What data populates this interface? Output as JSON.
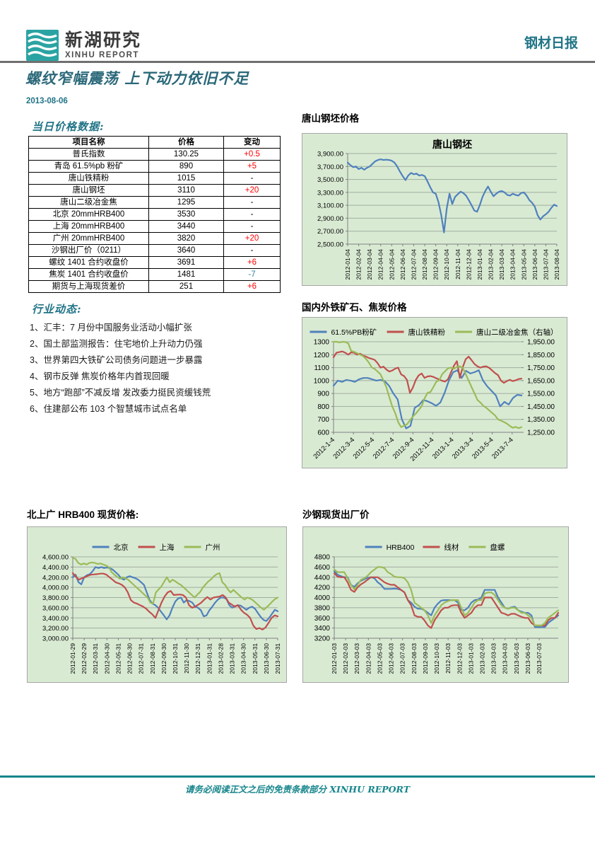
{
  "header": {
    "logo_title": "新湖研究",
    "logo_subtitle": "XINHU REPORT",
    "report_type": "钢材日报"
  },
  "report": {
    "title": "螺纹窄幅震荡 上下动力依旧不足",
    "date": "2013-08-06"
  },
  "colors": {
    "accent_teal": "#1f7486",
    "footer_teal": "#17868c",
    "up_red": "#ff0000",
    "down_teal": "#31859c",
    "chart_bg_green": "#d9ead3",
    "series_blue": "#4F81BD",
    "series_red": "#C0504D",
    "series_olive": "#9BBB59"
  },
  "price_table": {
    "heading": "当日价格数据:",
    "columns": [
      "项目名称",
      "价格",
      "变动"
    ],
    "rows": [
      {
        "name": "普氏指数",
        "price": "130.25",
        "change": "+0.5",
        "direction": "up"
      },
      {
        "name": "青岛 61.5%pb 粉矿",
        "price": "890",
        "change": "+5",
        "direction": "up"
      },
      {
        "name": "唐山铁精粉",
        "price": "1015",
        "change": "-",
        "direction": "flat"
      },
      {
        "name": "唐山钢坯",
        "price": "3110",
        "change": "+20",
        "direction": "up"
      },
      {
        "name": "唐山二级冶金焦",
        "price": "1295",
        "change": "-",
        "direction": "flat"
      },
      {
        "name": "北京 20mmHRB400",
        "price": "3530",
        "change": "-",
        "direction": "flat"
      },
      {
        "name": "上海 20mmHRB400",
        "price": "3440",
        "change": "-",
        "direction": "flat"
      },
      {
        "name": "广州 20mmHRB400",
        "price": "3820",
        "change": "+20",
        "direction": "up"
      },
      {
        "name": "沙钢出厂价（0211）",
        "price": "3640",
        "change": "-",
        "direction": "flat"
      },
      {
        "name": "螺纹 1401 合约收盘价",
        "price": "3691",
        "change": "+6",
        "direction": "up"
      },
      {
        "name": "焦炭 1401 合约收盘价",
        "price": "1481",
        "change": "-7",
        "direction": "down"
      },
      {
        "name": "期货与上海现货差价",
        "price": "251",
        "change": "+6",
        "direction": "up"
      }
    ]
  },
  "news": {
    "heading": "行业动态:",
    "items": [
      "1、汇丰：7 月份中国服务业活动小幅扩张",
      "2、国土部监测报告：住宅地价上升动力仍强",
      "3、世界第四大铁矿公司债务问题进一步暴露",
      "4、钢市反弹 焦炭价格年内首现回暖",
      "5、地方“跑部”不减反增 发改委力挺民资缓钱荒",
      "6、住建部公布 103 个智慧城市试点名单"
    ]
  },
  "footer": {
    "disclaimer": "请务必阅读正文之后的免责条款部分 XINHU REPORT"
  },
  "chart_data": [
    {
      "id": "c1",
      "type": "line",
      "heading": "唐山钢坯价格",
      "title": "唐山钢坯",
      "legend_position": "none",
      "grid": true,
      "left_axis": {
        "min": 2500,
        "max": 3900,
        "step": 200,
        "format": "comma2"
      },
      "x_ticks": [
        "2012-01-04",
        "2012-02-04",
        "2012-03-04",
        "2012-04-04",
        "2012-05-04",
        "2012-06-04",
        "2012-07-04",
        "2012-08-04",
        "2012-09-04",
        "2012-10-04",
        "2012-11-04",
        "2012-12-04",
        "2013-01-04",
        "2013-02-04",
        "2013-03-04",
        "2013-04-04",
        "2013-05-04",
        "2013-06-04",
        "2013-07-04",
        "2013-08-04"
      ],
      "series": [
        {
          "name": "唐山钢坯",
          "color": "#4F81BD",
          "values": [
            3760,
            3720,
            3690,
            3700,
            3660,
            3680,
            3650,
            3680,
            3700,
            3740,
            3780,
            3800,
            3810,
            3800,
            3805,
            3800,
            3790,
            3760,
            3700,
            3620,
            3550,
            3490,
            3560,
            3600,
            3580,
            3590,
            3560,
            3570,
            3550,
            3470,
            3380,
            3300,
            3280,
            3150,
            2950,
            2680,
            3050,
            3280,
            3120,
            3230,
            3270,
            3310,
            3290,
            3250,
            3180,
            3100,
            3020,
            3000,
            3100,
            3230,
            3320,
            3390,
            3310,
            3240,
            3280,
            3310,
            3320,
            3300,
            3260,
            3250,
            3280,
            3260,
            3250,
            3290,
            3300,
            3250,
            3180,
            3140,
            3080,
            2950,
            2880,
            2930,
            2960,
            3000,
            3060,
            3110,
            3090
          ]
        }
      ]
    },
    {
      "id": "c2",
      "type": "line",
      "heading": "国内外铁矿石、焦炭价格",
      "legend_position": "top",
      "grid": true,
      "left_axis": {
        "min": 600,
        "max": 1300,
        "step": 100,
        "format": "int"
      },
      "right_axis": {
        "min": 1250,
        "max": 1950,
        "step": 100,
        "format": "comma2"
      },
      "x_ticks": [
        "2012-1-4",
        "2012-3-4",
        "2012-5-4",
        "2012-7-4",
        "2012-9-4",
        "2012-11-4",
        "2013-1-4",
        "2013-3-4",
        "2013-5-4",
        "2013-7-4"
      ],
      "series": [
        {
          "name": "61.5%PB粉矿",
          "color": "#4F81BD",
          "axis": "left",
          "values": [
            960,
            1000,
            990,
            1005,
            1000,
            990,
            1010,
            1020,
            1020,
            1010,
            1000,
            1005,
            995,
            960,
            900,
            855,
            700,
            630,
            650,
            790,
            810,
            850,
            840,
            825,
            805,
            830,
            905,
            1000,
            1065,
            1080,
            1020,
            1075,
            1055,
            1065,
            1080,
            1000,
            955,
            920,
            885,
            800,
            835,
            815,
            865,
            890,
            885
          ]
        },
        {
          "name": "唐山铁精粉",
          "color": "#C0504D",
          "axis": "left",
          "values": [
            1180,
            1215,
            1220,
            1225,
            1215,
            1200,
            1218,
            1215,
            1200,
            1208,
            1195,
            1185,
            1175,
            1168,
            1160,
            1135,
            1100,
            1108,
            1085,
            1070,
            1078,
            1092,
            1100,
            1048,
            1035,
            1005,
            905,
            945,
            1005,
            1040,
            1055,
            1020,
            1032,
            1035,
            1028,
            1018,
            1008,
            998,
            992,
            1012,
            1065,
            1115,
            1150,
            1020,
            1105,
            1165,
            1185,
            1158,
            1128,
            1110,
            1100,
            1108,
            1110,
            1098,
            1078,
            1058,
            1042,
            1000,
            982,
            996,
            1006,
            996,
            1002,
            1012,
            1015
          ]
        },
        {
          "name": "唐山二级冶金焦（右轴）",
          "color": "#9BBB59",
          "axis": "right",
          "values": [
            1950,
            1950,
            1945,
            1950,
            1948,
            1938,
            1880,
            1872,
            1862,
            1850,
            1840,
            1818,
            1790,
            1752,
            1740,
            1720,
            1698,
            1650,
            1598,
            1520,
            1450,
            1398,
            1330,
            1290,
            1302,
            1312,
            1342,
            1372,
            1395,
            1422,
            1452,
            1512,
            1555,
            1562,
            1600,
            1642,
            1652,
            1700,
            1722,
            1745,
            1750,
            1742,
            1755,
            1760,
            1748,
            1700,
            1650,
            1600,
            1550,
            1500,
            1480,
            1455,
            1440,
            1420,
            1400,
            1380,
            1350,
            1340,
            1330,
            1318,
            1300,
            1285,
            1292,
            1282,
            1290
          ]
        }
      ]
    },
    {
      "id": "c3",
      "type": "line",
      "heading": "北上广 HRB400 现货价格:",
      "legend_position": "top",
      "grid": true,
      "left_axis": {
        "min": 3000,
        "max": 4600,
        "step": 200,
        "format": "comma2"
      },
      "x_ticks": [
        "2012-01-29",
        "2012-02-29",
        "2012-03-31",
        "2012-04-30",
        "2012-05-31",
        "2012-06-30",
        "2012-07-31",
        "2012-08-31",
        "2012-09-30",
        "2012-10-31",
        "2012-11-30",
        "2012-12-31",
        "2013-01-31",
        "2013-02-28",
        "2013-03-31",
        "2013-04-30",
        "2013-05-31",
        "2013-06-30",
        "2013-07-31"
      ],
      "series": [
        {
          "name": "北京",
          "color": "#4F81BD",
          "values": [
            4200,
            4250,
            4100,
            4060,
            4200,
            4240,
            4260,
            4320,
            4400,
            4380,
            4400,
            4380,
            4390,
            4380,
            4350,
            4300,
            4250,
            4180,
            4150,
            4200,
            4220,
            4200,
            4180,
            4150,
            4100,
            4050,
            3900,
            3750,
            3680,
            3650,
            3600,
            3520,
            3450,
            3370,
            3450,
            3600,
            3720,
            3780,
            3800,
            3700,
            3750,
            3730,
            3700,
            3620,
            3600,
            3550,
            3430,
            3450,
            3550,
            3620,
            3700,
            3760,
            3800,
            3800,
            3770,
            3650,
            3600,
            3630,
            3650,
            3640,
            3600,
            3560,
            3600,
            3620,
            3580,
            3500,
            3420,
            3360,
            3340,
            3400,
            3480,
            3560,
            3530
          ]
        },
        {
          "name": "上海",
          "color": "#C0504D",
          "values": [
            4280,
            4210,
            4150,
            4180,
            4200,
            4230,
            4250,
            4255,
            4260,
            4270,
            4270,
            4250,
            4200,
            4150,
            4100,
            4080,
            4050,
            4000,
            3900,
            3750,
            3700,
            3680,
            3650,
            3620,
            3580,
            3520,
            3470,
            3400,
            3550,
            3700,
            3820,
            3900,
            3930,
            3850,
            3855,
            3860,
            3850,
            3800,
            3650,
            3600,
            3620,
            3660,
            3700,
            3760,
            3810,
            3760,
            3800,
            3810,
            3820,
            3850,
            3800,
            3700,
            3660,
            3620,
            3650,
            3560,
            3500,
            3460,
            3400,
            3250,
            3180,
            3200,
            3170,
            3210,
            3300,
            3400,
            3450,
            3430
          ]
        },
        {
          "name": "广州",
          "color": "#9BBB59",
          "values": [
            4580,
            4560,
            4480,
            4450,
            4470,
            4450,
            4480,
            4490,
            4480,
            4460,
            4470,
            4450,
            4430,
            4400,
            4300,
            4250,
            4210,
            4170,
            4200,
            4180,
            4150,
            4100,
            4050,
            4000,
            3950,
            3900,
            3850,
            3800,
            3700,
            3680,
            3900,
            3960,
            4020,
            4110,
            4200,
            4100,
            4150,
            4120,
            4080,
            4050,
            4000,
            3950,
            3900,
            3850,
            3800,
            3860,
            3910,
            4000,
            4060,
            4120,
            4160,
            4220,
            4260,
            4280,
            4100,
            4050,
            3960,
            3900,
            3950,
            3900,
            3850,
            3800,
            3760,
            3800,
            3780,
            3750,
            3700,
            3650,
            3600,
            3560,
            3610,
            3660,
            3720,
            3770,
            3800
          ]
        }
      ]
    },
    {
      "id": "c4",
      "type": "line",
      "heading": "沙钢现货出厂价",
      "legend_position": "top",
      "grid": true,
      "left_axis": {
        "min": 3200,
        "max": 4800,
        "step": 200,
        "format": "int"
      },
      "x_ticks": [
        "2012-01-03",
        "2012-02-03",
        "2012-03-03",
        "2012-04-03",
        "2012-05-03",
        "2012-06-03",
        "2012-07-03",
        "2012-08-03",
        "2012-09-03",
        "2012-10-03",
        "2012-11-03",
        "2012-12-03",
        "2013-01-03",
        "2013-02-03",
        "2013-03-03",
        "2013-04-03",
        "2013-05-03",
        "2013-06-03",
        "2013-07-03"
      ],
      "series": [
        {
          "name": "HRB400",
          "color": "#4F81BD",
          "values": [
            4520,
            4450,
            4420,
            4400,
            4400,
            4250,
            4210,
            4280,
            4330,
            4360,
            4390,
            4400,
            4380,
            4300,
            4250,
            4170,
            4170,
            4170,
            4175,
            4170,
            4150,
            4100,
            3950,
            3900,
            3820,
            3780,
            3780,
            3750,
            3700,
            3650,
            3800,
            3880,
            3940,
            3950,
            3950,
            3950,
            3950,
            3900,
            3760,
            3750,
            3800,
            3900,
            3950,
            3960,
            4000,
            4150,
            4150,
            4150,
            4150,
            4000,
            3900,
            3800,
            3780,
            3810,
            3820,
            3750,
            3720,
            3700,
            3700,
            3650,
            3420,
            3420,
            3420,
            3420,
            3500,
            3550,
            3600,
            3650
          ]
        },
        {
          "name": "线材",
          "color": "#C0504D",
          "values": [
            4480,
            4410,
            4400,
            4400,
            4300,
            4150,
            4110,
            4200,
            4260,
            4300,
            4350,
            4400,
            4400,
            4400,
            4350,
            4300,
            4270,
            4250,
            4250,
            4200,
            4150,
            4100,
            3950,
            3850,
            3650,
            3620,
            3620,
            3550,
            3450,
            3400,
            3550,
            3650,
            3750,
            3800,
            3800,
            3840,
            3850,
            3850,
            3700,
            3600,
            3650,
            3700,
            3800,
            3850,
            3850,
            4000,
            4000,
            4000,
            3900,
            3800,
            3700,
            3680,
            3650,
            3680,
            3680,
            3650,
            3620,
            3600,
            3600,
            3500,
            3450,
            3450,
            3450,
            3450,
            3550,
            3600,
            3600,
            3700
          ]
        },
        {
          "name": "盘螺",
          "color": "#9BBB59",
          "values": [
            4550,
            4500,
            4500,
            4500,
            4380,
            4250,
            4160,
            4250,
            4350,
            4380,
            4430,
            4500,
            4550,
            4600,
            4600,
            4580,
            4500,
            4460,
            4410,
            4400,
            4400,
            4380,
            4300,
            4150,
            3900,
            3850,
            3800,
            3750,
            3650,
            3500,
            3650,
            3750,
            3850,
            3900,
            3930,
            3950,
            3950,
            3950,
            3800,
            3650,
            3700,
            3800,
            3900,
            3950,
            3950,
            4080,
            4100,
            4100,
            4050,
            3950,
            3850,
            3800,
            3780,
            3800,
            3800,
            3750,
            3700,
            3700,
            3650,
            3600,
            3450,
            3450,
            3450,
            3500,
            3600,
            3650,
            3700,
            3750
          ]
        }
      ]
    }
  ]
}
